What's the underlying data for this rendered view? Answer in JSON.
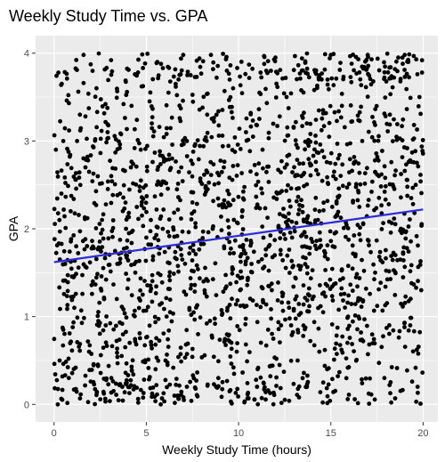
{
  "chart_data": {
    "type": "scatter",
    "title": "Weekly Study Time vs. GPA",
    "xlabel": "Weekly Study Time (hours)",
    "ylabel": "GPA",
    "xlim": [
      -1,
      20.8
    ],
    "ylim": [
      -0.2,
      4.2
    ],
    "xticks": [
      0,
      5,
      10,
      15,
      20
    ],
    "yticks": [
      0,
      1,
      2,
      3,
      4
    ],
    "x_tick_labels": [
      "0",
      "5",
      "10",
      "15",
      "20"
    ],
    "y_tick_labels": [
      "0",
      "1",
      "2",
      "3",
      "4"
    ],
    "grid": true,
    "panel_background": "#ebebeb",
    "grid_color": "#ffffff",
    "point_color": "#000000",
    "trend_color": "#2b2bd9",
    "trend_line": {
      "x": [
        0,
        20
      ],
      "y": [
        1.62,
        2.22
      ]
    },
    "points": [
      [
        0.1,
        2.9
      ],
      [
        0.3,
        0.5
      ],
      [
        0.6,
        1.6
      ],
      [
        1.4,
        3.3
      ],
      [
        0.9,
        2.2
      ],
      [
        0.2,
        0.0
      ],
      [
        0.4,
        2.4
      ],
      [
        1.1,
        1.1
      ],
      [
        0.8,
        0.3
      ],
      [
        1.7,
        2.7
      ],
      [
        0.5,
        3.0
      ],
      [
        1.2,
        1.8
      ],
      [
        1.9,
        0.6
      ],
      [
        2.3,
        3.6
      ],
      [
        2.1,
        1.4
      ],
      [
        2.6,
        2.1
      ],
      [
        1.6,
        3.66
      ],
      [
        1.6,
        3.98
      ],
      [
        2.8,
        0.9
      ],
      [
        3.1,
        2.6
      ],
      [
        3.4,
        1.2
      ],
      [
        2.9,
        3.1
      ],
      [
        3.7,
        0.2
      ],
      [
        3.9,
        2.0
      ],
      [
        4.2,
        3.4
      ],
      [
        4.4,
        1.5
      ],
      [
        4.7,
        2.9
      ],
      [
        4.1,
        0.7
      ],
      [
        5.0,
        1.9
      ],
      [
        5.3,
        3.2
      ],
      [
        5.5,
        0.4
      ],
      [
        5.8,
        2.5
      ],
      [
        5.6,
        3.9
      ],
      [
        6.1,
        1.0
      ],
      [
        6.4,
        2.8
      ],
      [
        6.2,
        3.55
      ],
      [
        6.7,
        0.1
      ],
      [
        6.9,
        1.7
      ],
      [
        7.2,
        3.0
      ],
      [
        7.5,
        2.3
      ],
      [
        7.4,
        3.75
      ],
      [
        7.8,
        0.8
      ],
      [
        8.1,
        1.4
      ],
      [
        8.3,
        3.3
      ],
      [
        8.6,
        2.0
      ],
      [
        8.9,
        0.3
      ],
      [
        9.2,
        2.7
      ],
      [
        9.4,
        1.1
      ],
      [
        9.7,
        3.6
      ],
      [
        9.9,
        0.6
      ],
      [
        10.2,
        2.2
      ],
      [
        10.4,
        3.1
      ],
      [
        10.7,
        1.6
      ],
      [
        11.0,
        0.2
      ],
      [
        11.3,
        2.9
      ],
      [
        11.5,
        3.8
      ],
      [
        11.8,
        1.3
      ],
      [
        12.1,
        2.4
      ],
      [
        12.3,
        0.9
      ],
      [
        12.6,
        3.5
      ],
      [
        12.9,
        1.9
      ],
      [
        13.2,
        0.5
      ],
      [
        13.4,
        2.6
      ],
      [
        13.7,
        3.2
      ],
      [
        14.0,
        1.2
      ],
      [
        14.3,
        2.1
      ],
      [
        14.5,
        3.7
      ],
      [
        14.8,
        0.4
      ],
      [
        15.1,
        1.8
      ],
      [
        15.4,
        2.8
      ],
      [
        15.6,
        3.4
      ],
      [
        15.9,
        0.7
      ],
      [
        16.2,
        2.3
      ],
      [
        16.5,
        1.0
      ],
      [
        16.7,
        3.0
      ],
      [
        17.0,
        3.98
      ],
      [
        17.4,
        1.5
      ],
      [
        17.6,
        2.6
      ],
      [
        17.9,
        0.3
      ],
      [
        18.2,
        3.3
      ],
      [
        18.5,
        1.7
      ],
      [
        18.8,
        2.0
      ],
      [
        19.0,
        3.98
      ],
      [
        19.3,
        0.9
      ],
      [
        19.6,
        2.5
      ],
      [
        19.8,
        3.5
      ],
      [
        19.9,
        1.3
      ],
      [
        19.7,
        0.2
      ],
      [
        8.5,
        3.98
      ],
      [
        7.0,
        3.98
      ],
      [
        12.0,
        3.95
      ],
      [
        15.0,
        3.98
      ],
      [
        19.2,
        3.9
      ],
      [
        2.4,
        0.95
      ],
      [
        4.8,
        1.25
      ],
      [
        9.5,
        1.85
      ]
    ],
    "random_seed": 7,
    "random_point_count": 1900
  }
}
